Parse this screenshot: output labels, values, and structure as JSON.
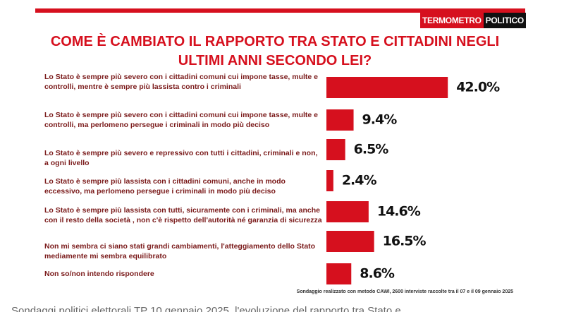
{
  "logo": [
    "TERMOMETRO",
    "POLITICO"
  ],
  "chart_data": {
    "type": "bar",
    "orientation": "horizontal",
    "title": "COME È CAMBIATO IL RAPPORTO TRA STATO E CITTADINI NEGLI ULTIMI ANNI SECONDO LEI?",
    "categories": [
      "Lo Stato è sempre più severo con i cittadini comuni cui impone tasse, multe e controlli, mentre è sempre più lassista contro i criminali",
      "Lo Stato è sempre più severo con i cittadini comuni cui impone tasse, multe e controlli, ma perlomeno persegue i criminali in modo più deciso",
      "Lo Stato è sempre più severo e repressivo con tutti i cittadini, criminali e non, a ogni livello",
      "Lo Stato è sempre più lassista con i cittadini comuni, anche in modo eccessivo, ma perlomeno persegue i criminali in modo più deciso",
      "Lo Stato è sempre più lassista con tutti, sicuramente con i criminali, ma anche con il resto della società , non c'è rispetto dell'autorità  né garanzia di sicurezza",
      "Non mi sembra ci siano stati grandi cambiamenti, l'atteggiamento dello Stato mediamente mi sembra equilibrato",
      "Non so/non intendo rispondere"
    ],
    "values": [
      42.0,
      9.4,
      6.5,
      2.4,
      14.6,
      16.5,
      8.6
    ],
    "value_labels": [
      "42.0%",
      "9.4%",
      "6.5%",
      "2.4%",
      "14.6%",
      "16.5%",
      "8.6%"
    ],
    "color": "#d6101e",
    "note": "Sondaggio realizzato con metodo CAWI, 2600 interviste raccolte tra il 07 e il 09 gennaio 2025"
  },
  "caption": "Sondaggi politici elettorali TP 10 gennaio 2025, l'evoluzione del rapporto tra Stato e"
}
